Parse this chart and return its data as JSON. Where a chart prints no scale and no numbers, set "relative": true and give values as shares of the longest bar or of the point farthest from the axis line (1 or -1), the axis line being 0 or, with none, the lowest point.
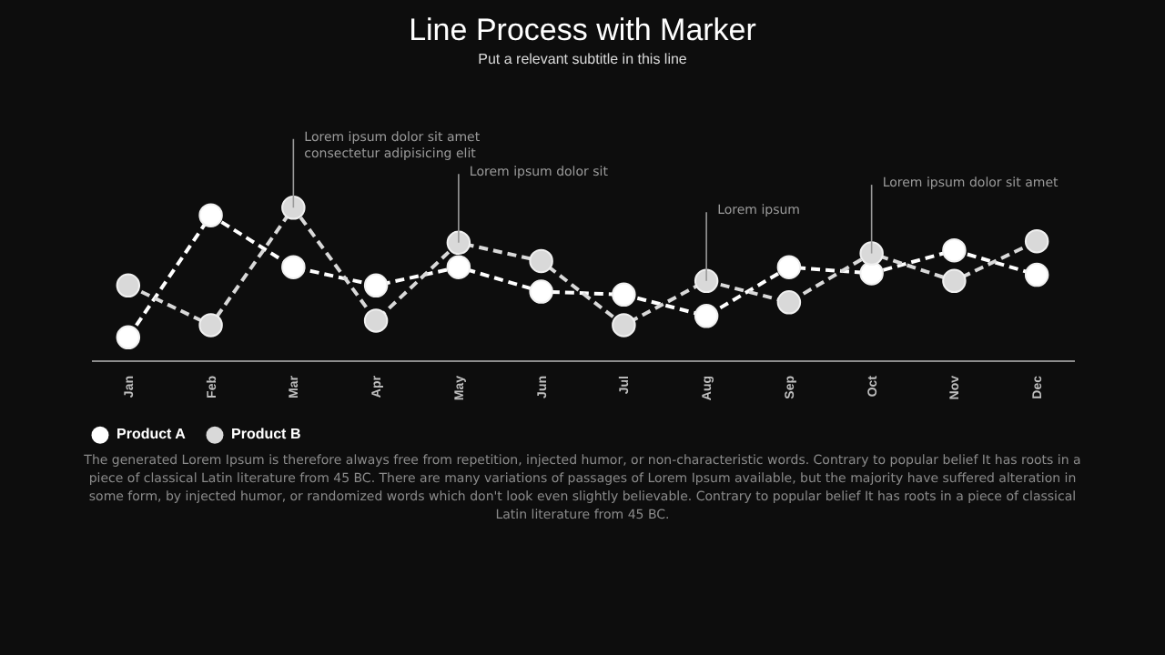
{
  "chart_data": {
    "type": "line",
    "title": "Line Process with Marker",
    "subtitle": "Put a relevant subtitle in this line",
    "categories": [
      "Jan",
      "Feb",
      "Mar",
      "Apr",
      "May",
      "Jun",
      "Jul",
      "Aug",
      "Sep",
      "Oct",
      "Nov",
      "Dec"
    ],
    "relative": true,
    "series": [
      {
        "name": "Product A",
        "color": "#ffffff",
        "values": [
          0.15,
          0.95,
          0.61,
          0.49,
          0.61,
          0.45,
          0.43,
          0.29,
          0.61,
          0.57,
          0.72,
          0.56
        ]
      },
      {
        "name": "Product B",
        "color": "#d9d9d9",
        "values": [
          0.49,
          0.23,
          1,
          0.26,
          0.77,
          0.65,
          0.23,
          0.52,
          0.38,
          0.7,
          0.52,
          0.78
        ]
      }
    ],
    "marker": "circle",
    "line_style": "dashed",
    "grid": false,
    "legend": "bottom",
    "annotations": [
      {
        "text": "Lorem ipsum dolor sit amet\nconsectetur adipisicing elit",
        "x": "Mar",
        "y": 1
      },
      {
        "text": "Lorem ipsum dolor sit",
        "x": "May",
        "y": 0.77
      },
      {
        "text": "Lorem ipsum",
        "x": "Aug",
        "y": 0.52
      },
      {
        "text": "Lorem ipsum dolor sit amet",
        "x": "Oct",
        "y": 0.7
      },
      "The generated Lorem Ipsum is therefore always free from repetition, injected humor, or non-characteristic words. Contrary to popular belief It has roots in a piece of classical Latin literature from 45 BC. There are many variations of passages of Lorem Ipsum available, but the majority have suffered alteration in some form, by injected humor, or randomized words which don't look even slightly believable. Contrary to popular belief It has roots in a piece of classical Latin literature from 45 BC."
    ]
  }
}
